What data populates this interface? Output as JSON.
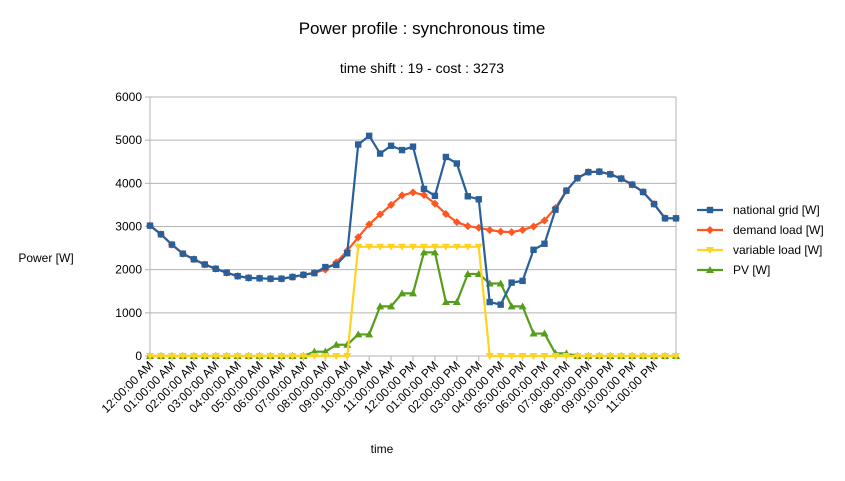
{
  "chart_data": {
    "type": "line",
    "title": "Power profile : synchronous time",
    "subtitle": "time shift : 19 - cost : 3273",
    "xlabel": "time",
    "ylabel": "Power [W]",
    "ylim": [
      0,
      6000
    ],
    "yticks": [
      0,
      1000,
      2000,
      3000,
      4000,
      5000,
      6000
    ],
    "grid": true,
    "legend_position": "right",
    "xticks": [
      "12:00:00 AM",
      "01:00:00 AM",
      "02:00:00 AM",
      "03:00:00 AM",
      "04:00:00 AM",
      "05:00:00 AM",
      "06:00:00 AM",
      "07:00:00 AM",
      "08:00:00 AM",
      "09:00:00 AM",
      "10:00:00 AM",
      "11:00:00 AM",
      "12:00:00 PM",
      "01:00:00 PM",
      "02:00:00 PM",
      "03:00:00 PM",
      "04:00:00 PM",
      "05:00:00 PM",
      "06:00:00 PM",
      "07:00:00 PM",
      "08:00:00 PM",
      "09:00:00 PM",
      "10:00:00 PM",
      "11:00:00 PM"
    ],
    "x": [
      "00:00",
      "00:30",
      "01:00",
      "01:30",
      "02:00",
      "02:30",
      "03:00",
      "03:30",
      "04:00",
      "04:30",
      "05:00",
      "05:30",
      "06:00",
      "06:30",
      "07:00",
      "07:30",
      "08:00",
      "08:30",
      "09:00",
      "09:30",
      "10:00",
      "10:30",
      "11:00",
      "11:30",
      "12:00",
      "12:30",
      "13:00",
      "13:30",
      "14:00",
      "14:30",
      "15:00",
      "15:30",
      "16:00",
      "16:30",
      "17:00",
      "17:30",
      "18:00",
      "18:30",
      "19:00",
      "19:30",
      "20:00",
      "20:30",
      "21:00",
      "21:30",
      "22:00",
      "22:30",
      "23:00",
      "23:30",
      "24:00"
    ],
    "series": [
      {
        "name": "national grid [W]",
        "color": "#2a6099",
        "marker": "square",
        "values": [
          3020,
          2820,
          2580,
          2370,
          2240,
          2120,
          2020,
          1930,
          1850,
          1810,
          1800,
          1790,
          1790,
          1830,
          1880,
          1920,
          2060,
          2110,
          2380,
          4900,
          5100,
          4690,
          4870,
          4770,
          4850,
          3870,
          3710,
          4610,
          4460,
          3700,
          3630,
          1250,
          1190,
          1700,
          1740,
          2460,
          2600,
          3390,
          3830,
          4120,
          4260,
          4270,
          4210,
          4110,
          3970,
          3800,
          3520,
          3190,
          3190
        ]
      },
      {
        "name": "demand load [W]",
        "color": "#ff5722",
        "marker": "diamond",
        "values": [
          3020,
          2820,
          2580,
          2370,
          2240,
          2120,
          2020,
          1930,
          1850,
          1810,
          1800,
          1790,
          1790,
          1830,
          1880,
          1930,
          2000,
          2170,
          2440,
          2750,
          3050,
          3280,
          3500,
          3720,
          3790,
          3730,
          3530,
          3290,
          3100,
          3010,
          2970,
          2920,
          2880,
          2870,
          2920,
          3000,
          3140,
          3430,
          3830,
          4120,
          4260,
          4270,
          4210,
          4110,
          3970,
          3800,
          3520,
          3190,
          3190
        ]
      },
      {
        "name": "variable load [W]",
        "color": "#ffd320",
        "marker": "triangle-down",
        "values": [
          0,
          0,
          0,
          0,
          0,
          0,
          0,
          0,
          0,
          0,
          0,
          0,
          0,
          0,
          0,
          0,
          0,
          0,
          0,
          2530,
          2530,
          2530,
          2530,
          2530,
          2530,
          2530,
          2530,
          2530,
          2530,
          2530,
          2530,
          0,
          0,
          0,
          0,
          0,
          0,
          0,
          0,
          0,
          0,
          0,
          0,
          0,
          0,
          0,
          0,
          0,
          0
        ]
      },
      {
        "name": "PV [W]",
        "color": "#579d1c",
        "marker": "triangle-up",
        "values": [
          0,
          0,
          0,
          0,
          0,
          0,
          0,
          0,
          0,
          0,
          0,
          0,
          0,
          0,
          0,
          100,
          100,
          260,
          260,
          500,
          500,
          1150,
          1150,
          1450,
          1450,
          2400,
          2400,
          1250,
          1250,
          1900,
          1900,
          1680,
          1680,
          1150,
          1150,
          520,
          520,
          60,
          60,
          0,
          0,
          0,
          0,
          0,
          0,
          0,
          0,
          0,
          0
        ]
      }
    ]
  }
}
